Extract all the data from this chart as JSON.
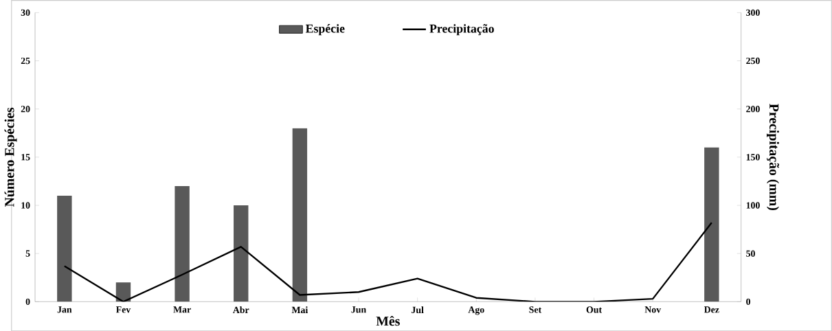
{
  "chart_data": {
    "type": "bar",
    "xlabel": "Mês",
    "ylabel": "Número Espécies",
    "y2label": "Precipitação (mm)",
    "categories": [
      "Jan",
      "Fev",
      "Mar",
      "Abr",
      "Mai",
      "Jun",
      "Jul",
      "Ago",
      "Set",
      "Out",
      "Nov",
      "Dez"
    ],
    "series": [
      {
        "name": "Espécie",
        "color": "#595959",
        "values": [
          11,
          2,
          12,
          10,
          18,
          0,
          0,
          0,
          0,
          0,
          0,
          16
        ]
      },
      {
        "name": "Precipitação",
        "type": "line",
        "axis": "y2",
        "color": "#000000",
        "values": [
          37,
          0,
          28,
          57,
          7,
          10,
          24,
          4,
          0,
          0,
          3,
          82
        ]
      }
    ],
    "ylim": [
      0,
      30
    ],
    "yticks": [
      0,
      5,
      10,
      15,
      20,
      25,
      30
    ],
    "y2lim": [
      0,
      300
    ],
    "y2ticks": [
      0,
      50,
      100,
      150,
      200,
      250,
      300
    ],
    "legend": "top"
  }
}
